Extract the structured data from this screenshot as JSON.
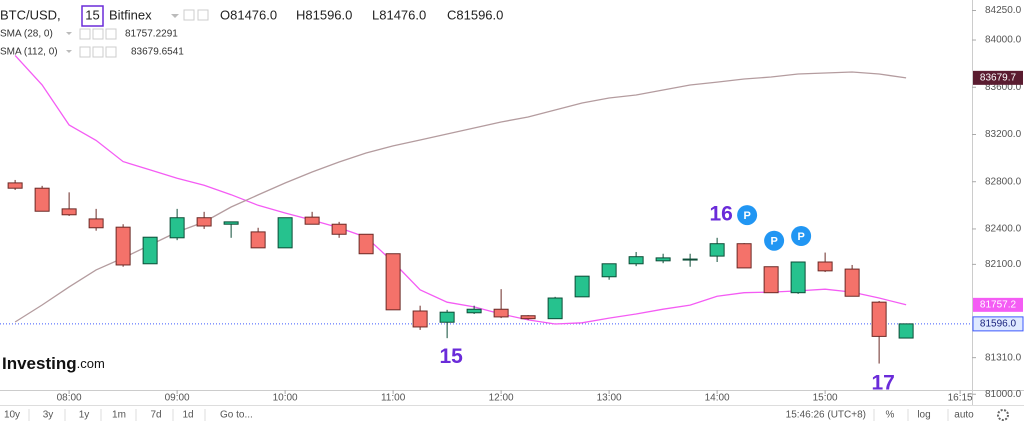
{
  "chart_data": {
    "type": "candlestick",
    "header": {
      "symbol": "BTC/USD,",
      "interval": "15",
      "exchange": "Bitfinex",
      "ohlc_labels": [
        "O81476.0",
        "H81596.0",
        "L81476.0",
        "C81596.0"
      ]
    },
    "x": [
      7.5,
      7.75,
      8,
      8.25,
      8.5,
      8.75,
      9,
      9.25,
      9.5,
      9.75,
      10,
      10.25,
      10.5,
      10.75,
      11,
      11.25,
      11.5,
      11.75,
      12,
      12.25,
      12.5,
      12.75,
      13,
      13.25,
      13.5,
      13.75,
      14,
      14.25,
      14.5,
      14.75,
      15,
      15.25,
      15.5,
      15.75
    ],
    "open": [
      82790,
      82745,
      82570,
      82485,
      82415,
      82105,
      82325,
      82495,
      82440,
      82375,
      82240,
      82500,
      82440,
      82355,
      82190,
      81705,
      81610,
      81690,
      81720,
      81665,
      81640,
      81825,
      81995,
      82105,
      82130,
      82140,
      82170,
      82275,
      82080,
      81860,
      82120,
      82060,
      81780,
      81476
    ],
    "high": [
      82815,
      82765,
      82710,
      82570,
      82440,
      82330,
      82570,
      82545,
      82460,
      82410,
      82495,
      82545,
      82460,
      82355,
      82190,
      81750,
      81715,
      81750,
      81890,
      81670,
      81825,
      82000,
      82105,
      82205,
      82190,
      82190,
      82325,
      82280,
      82080,
      82120,
      82200,
      82095,
      81790,
      81596
    ],
    "low": [
      82730,
      82550,
      82510,
      82385,
      82080,
      82105,
      82305,
      82400,
      82325,
      82240,
      82240,
      82440,
      82325,
      82190,
      81715,
      81545,
      81475,
      81680,
      81645,
      81630,
      81640,
      81825,
      81970,
      82085,
      82110,
      82080,
      82120,
      82070,
      81860,
      81850,
      82035,
      81830,
      81260,
      81476
    ],
    "close": [
      82745,
      82550,
      82520,
      82410,
      82095,
      82330,
      82495,
      82425,
      82460,
      82240,
      82495,
      82440,
      82355,
      82190,
      81715,
      81570,
      81695,
      81720,
      81655,
      81640,
      81815,
      82000,
      82105,
      82165,
      82155,
      82145,
      82275,
      82070,
      81860,
      82120,
      82045,
      81830,
      81490,
      81596
    ],
    "up_color": "#26c28e",
    "down_color": "#f4726a",
    "overlays": [
      {
        "name": "SMA (28, 0)",
        "color": "#f45cf4",
        "values": [
          83870,
          83620,
          83280,
          83150,
          82970,
          82900,
          82830,
          82770,
          82690,
          82600,
          82535,
          82475,
          82410,
          82330,
          82120,
          81885,
          81780,
          81740,
          81680,
          81630,
          81595,
          81605,
          81645,
          81680,
          81720,
          81755,
          81830,
          81860,
          81865,
          81875,
          81890,
          81865,
          81815,
          81757.2291
        ]
      },
      {
        "name": "SMA (112, 0)",
        "color": "#b49c9f",
        "values": [
          81612,
          81756,
          81909,
          82053,
          82154,
          82264,
          82374,
          82459,
          82586,
          82688,
          82789,
          82882,
          82967,
          83043,
          83103,
          83153,
          83204,
          83255,
          83306,
          83348,
          83407,
          83467,
          83509,
          83534,
          83577,
          83619,
          83644,
          83670,
          83687,
          83712,
          83721,
          83729,
          83712,
          83679.6541
        ]
      }
    ],
    "price_tags": [
      {
        "value": 83679.7,
        "color": "#5a1c30"
      },
      {
        "value": 81757.2,
        "color": "#f45cf4"
      },
      {
        "value": 81596,
        "label": "81596.0",
        "color": "#dfe9ff"
      }
    ],
    "xlim": [
      7.36,
      16.36
    ],
    "xticks": [
      {
        "value": 8,
        "label": "08:00"
      },
      {
        "value": 9,
        "label": "09:00"
      },
      {
        "value": 10,
        "label": "10:00"
      },
      {
        "value": 11,
        "label": "11:00"
      },
      {
        "value": 12,
        "label": "12:00"
      },
      {
        "value": 13,
        "label": "13:00"
      },
      {
        "value": 14,
        "label": "14:00"
      },
      {
        "value": 15,
        "label": "15:00"
      },
      {
        "value": 16.25,
        "label": "16:15"
      }
    ],
    "ylim": [
      81036,
      84339
    ],
    "yticks": [
      {
        "value": 84250,
        "label": "84250.0"
      },
      {
        "value": 84000,
        "label": "84000.0"
      },
      {
        "value": 83600,
        "label": "83600.0"
      },
      {
        "value": 83200,
        "label": "83200.0"
      },
      {
        "value": 82800,
        "label": "82800.0"
      },
      {
        "value": 82400,
        "label": "82400.0"
      },
      {
        "value": 82100,
        "label": "82100.0"
      },
      {
        "value": 81310,
        "label": "81310.0"
      },
      {
        "value": 81000,
        "label": "81000.0"
      }
    ],
    "annotations": [
      "15",
      "16",
      "17"
    ],
    "markers": [
      "P",
      "P",
      "P"
    ],
    "watermark": [
      "Investing",
      ".com"
    ],
    "toolbar": {
      "ranges": [
        "10y",
        "3y",
        "1y",
        "1m",
        "7d",
        "1d"
      ],
      "goto": "Go to...",
      "clock": "15:46:26 (UTC+8)",
      "scales": [
        "%",
        "log",
        "auto"
      ]
    }
  }
}
